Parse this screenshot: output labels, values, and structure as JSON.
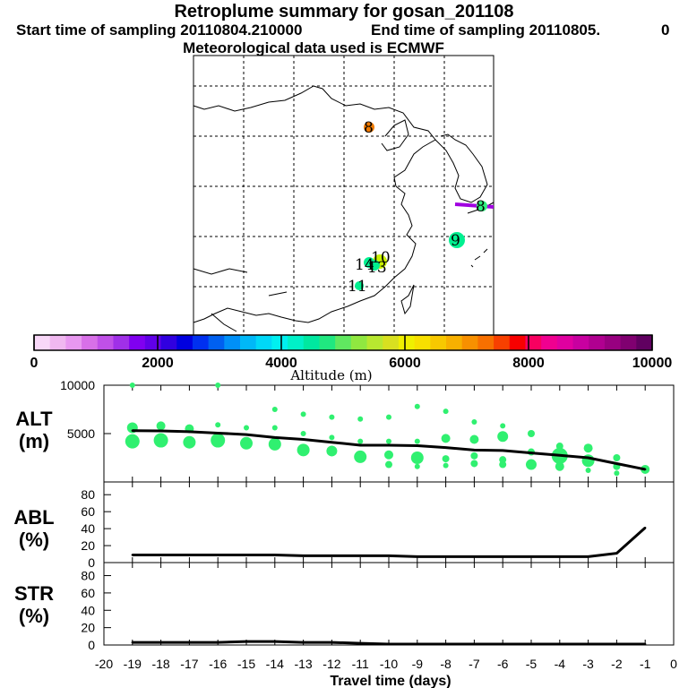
{
  "header": {
    "title": "Retroplume summary for gosan_201108",
    "start_label": "Start time of sampling 20110804.210000",
    "end_label": "End time of sampling 20110805.",
    "end_suffix": "0",
    "met_label": "Meteorological data used is ECMWF"
  },
  "colorbar": {
    "title": "Altitude (m)",
    "tick_labels": [
      "0",
      "2000",
      "4000",
      "6000",
      "8000",
      "10000"
    ],
    "colors": [
      "#f8d8f8",
      "#f0b8f0",
      "#e898f0",
      "#d870e8",
      "#c050e8",
      "#a030e8",
      "#8000f0",
      "#6000e8",
      "#3000e0",
      "#0000e0",
      "#0030f0",
      "#0060f0",
      "#0090f8",
      "#00b8f8",
      "#00d8f8",
      "#00f0f0",
      "#00f0c8",
      "#00e8a0",
      "#20e880",
      "#60e860",
      "#90e840",
      "#b8e830",
      "#d8e020",
      "#f0f000",
      "#f8e000",
      "#f8c800",
      "#f8b000",
      "#f89000",
      "#f87000",
      "#f84000",
      "#f80000",
      "#f80060",
      "#f00090",
      "#e000a0",
      "#c800a0",
      "#b00090",
      "#980080",
      "#800070",
      "#600060"
    ],
    "range": [
      0,
      10000
    ]
  },
  "map": {
    "cluster_labels": [
      {
        "label": "8",
        "color": "#f07a00"
      },
      {
        "label": "9",
        "color": "#00f090"
      },
      {
        "label": "8",
        "color": "#30f080"
      },
      {
        "label": "10",
        "color": "#c8f000"
      },
      {
        "label": "14",
        "color": "#00f090"
      },
      {
        "label": "13",
        "color": "#00f090"
      },
      {
        "label": "11",
        "color": "#00f090"
      }
    ]
  },
  "chart_data": [
    {
      "type": "line",
      "panel": "ALT",
      "ylabel": "ALT\n(m)",
      "ylabel_lines": [
        "ALT",
        "(m)"
      ],
      "ylim": [
        0,
        10000
      ],
      "yticks": [
        "5000",
        "10000"
      ],
      "x": [
        -19,
        -18,
        -17,
        -16,
        -15,
        -14,
        -13,
        -12,
        -11,
        -10,
        -9,
        -8,
        -7,
        -6,
        -5,
        -4,
        -3,
        -2,
        -1
      ],
      "series": [
        {
          "name": "mean altitude",
          "color": "#000000",
          "values": [
            5300,
            5280,
            5200,
            5050,
            4900,
            4600,
            4400,
            4100,
            3800,
            3800,
            3750,
            3550,
            3300,
            3250,
            3000,
            2750,
            2500,
            1900,
            1300
          ]
        }
      ],
      "clusters": {
        "color": "#30f070",
        "points": [
          [
            -19,
            5600,
            12
          ],
          [
            -19,
            4200,
            16
          ],
          [
            -19,
            10000,
            6
          ],
          [
            -18,
            5800,
            10
          ],
          [
            -18,
            4300,
            16
          ],
          [
            -17,
            5500,
            10
          ],
          [
            -17,
            4100,
            14
          ],
          [
            -16,
            5900,
            6
          ],
          [
            -16,
            4300,
            16
          ],
          [
            -16,
            10000,
            6
          ],
          [
            -15,
            5600,
            6
          ],
          [
            -15,
            4000,
            14
          ],
          [
            -14,
            7500,
            6
          ],
          [
            -14,
            5600,
            6
          ],
          [
            -14,
            3900,
            14
          ],
          [
            -13,
            7000,
            6
          ],
          [
            -13,
            5000,
            6
          ],
          [
            -13,
            3300,
            14
          ],
          [
            -12,
            6700,
            6
          ],
          [
            -12,
            4600,
            6
          ],
          [
            -12,
            3200,
            12
          ],
          [
            -11,
            6500,
            6
          ],
          [
            -11,
            4200,
            6
          ],
          [
            -11,
            2600,
            14
          ],
          [
            -10,
            6700,
            6
          ],
          [
            -10,
            4200,
            6
          ],
          [
            -10,
            2800,
            10
          ],
          [
            -10,
            1800,
            8
          ],
          [
            -9,
            7800,
            6
          ],
          [
            -9,
            4200,
            6
          ],
          [
            -9,
            2500,
            14
          ],
          [
            -9,
            1600,
            6
          ],
          [
            -8,
            7300,
            6
          ],
          [
            -8,
            4500,
            10
          ],
          [
            -8,
            2400,
            8
          ],
          [
            -8,
            1700,
            6
          ],
          [
            -7,
            6200,
            6
          ],
          [
            -7,
            4400,
            10
          ],
          [
            -7,
            2700,
            8
          ],
          [
            -7,
            1900,
            8
          ],
          [
            -6,
            5800,
            6
          ],
          [
            -6,
            4700,
            12
          ],
          [
            -6,
            2300,
            8
          ],
          [
            -6,
            1800,
            8
          ],
          [
            -5,
            5000,
            8
          ],
          [
            -5,
            3100,
            8
          ],
          [
            -5,
            1800,
            12
          ],
          [
            -4,
            3700,
            8
          ],
          [
            -4,
            2700,
            18
          ],
          [
            -4,
            1600,
            10
          ],
          [
            -3,
            3500,
            10
          ],
          [
            -3,
            2200,
            14
          ],
          [
            -3,
            1200,
            6
          ],
          [
            -2,
            2500,
            8
          ],
          [
            -2,
            1600,
            8
          ],
          [
            -2,
            900,
            6
          ],
          [
            -1,
            1300,
            10
          ]
        ]
      }
    },
    {
      "type": "line",
      "panel": "ABL",
      "ylabel": "ABL\n(%)",
      "ylabel_lines": [
        "ABL",
        "(%)"
      ],
      "ylim": [
        0,
        95
      ],
      "yticks": [
        "0",
        "20",
        "40",
        "60",
        "80"
      ],
      "x": [
        -19,
        -18,
        -17,
        -16,
        -15,
        -14,
        -13,
        -12,
        -11,
        -10,
        -9,
        -8,
        -7,
        -6,
        -5,
        -4,
        -3,
        -2,
        -1
      ],
      "series": [
        {
          "name": "ABL fraction",
          "color": "#000000",
          "values": [
            9,
            9,
            9,
            9,
            9,
            9,
            8,
            8,
            8,
            8,
            7,
            7,
            7,
            7,
            7,
            7,
            7,
            11,
            41
          ]
        }
      ]
    },
    {
      "type": "line",
      "panel": "STR",
      "ylabel": "STR\n(%)",
      "ylabel_lines": [
        "STR",
        "(%)"
      ],
      "ylim": [
        0,
        95
      ],
      "yticks": [
        "0",
        "20",
        "40",
        "60",
        "80"
      ],
      "xlabel": "Travel time (days)",
      "xticks": [
        "-20",
        "-19",
        "-18",
        "-17",
        "-16",
        "-15",
        "-14",
        "-13",
        "-12",
        "-11",
        "-10",
        "-9",
        "-8",
        "-7",
        "-6",
        "-5",
        "-4",
        "-3",
        "-2",
        "-1",
        "0"
      ],
      "x": [
        -19,
        -18,
        -17,
        -16,
        -15,
        -14,
        -13,
        -12,
        -11,
        -10,
        -9,
        -8,
        -7,
        -6,
        -5,
        -4,
        -3,
        -2,
        -1
      ],
      "series": [
        {
          "name": "STR fraction",
          "color": "#000000",
          "values": [
            3,
            3,
            3,
            3,
            4,
            4,
            3,
            3,
            2,
            1,
            1,
            1,
            1,
            1,
            1,
            1,
            1,
            1,
            1
          ]
        }
      ]
    }
  ]
}
